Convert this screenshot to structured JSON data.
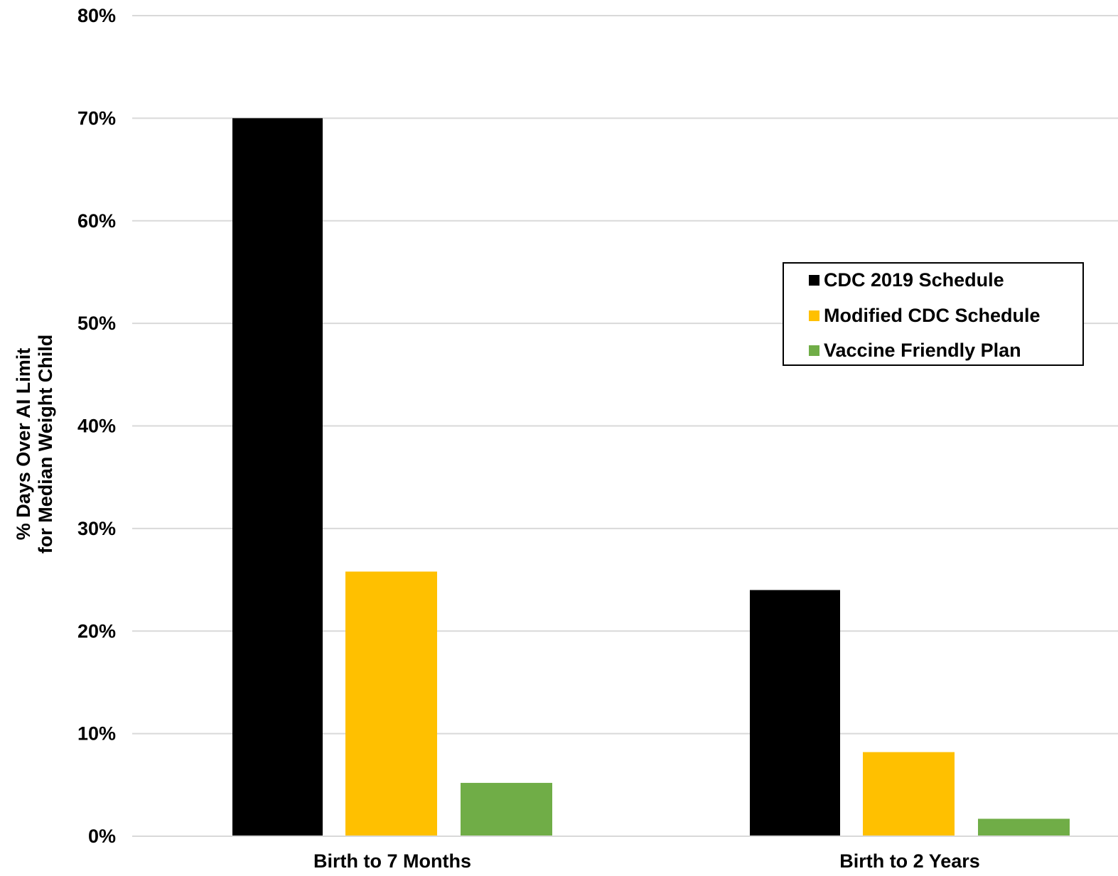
{
  "chart_data": {
    "type": "bar",
    "categories": [
      "Birth to 7 Months",
      "Birth to 2 Years"
    ],
    "series": [
      {
        "name": "CDC 2019 Schedule",
        "color": "#000000",
        "values": [
          70,
          24
        ]
      },
      {
        "name": "Modified CDC Schedule",
        "color": "#FFC000",
        "values": [
          25.8,
          8.2
        ]
      },
      {
        "name": "Vaccine Friendly Plan",
        "color": "#70AD47",
        "values": [
          5.2,
          1.7
        ]
      }
    ],
    "ylabel_lines": [
      "% Days Over AI Limit",
      "for Median Weight Child"
    ],
    "ylim": [
      0,
      80
    ],
    "yticks": [
      0,
      10,
      20,
      30,
      40,
      50,
      60,
      70,
      80
    ],
    "ytick_labels": [
      "0%",
      "10%",
      "20%",
      "30%",
      "40%",
      "50%",
      "60%",
      "70%",
      "80%"
    ],
    "grid": true,
    "legend_position": "right"
  }
}
